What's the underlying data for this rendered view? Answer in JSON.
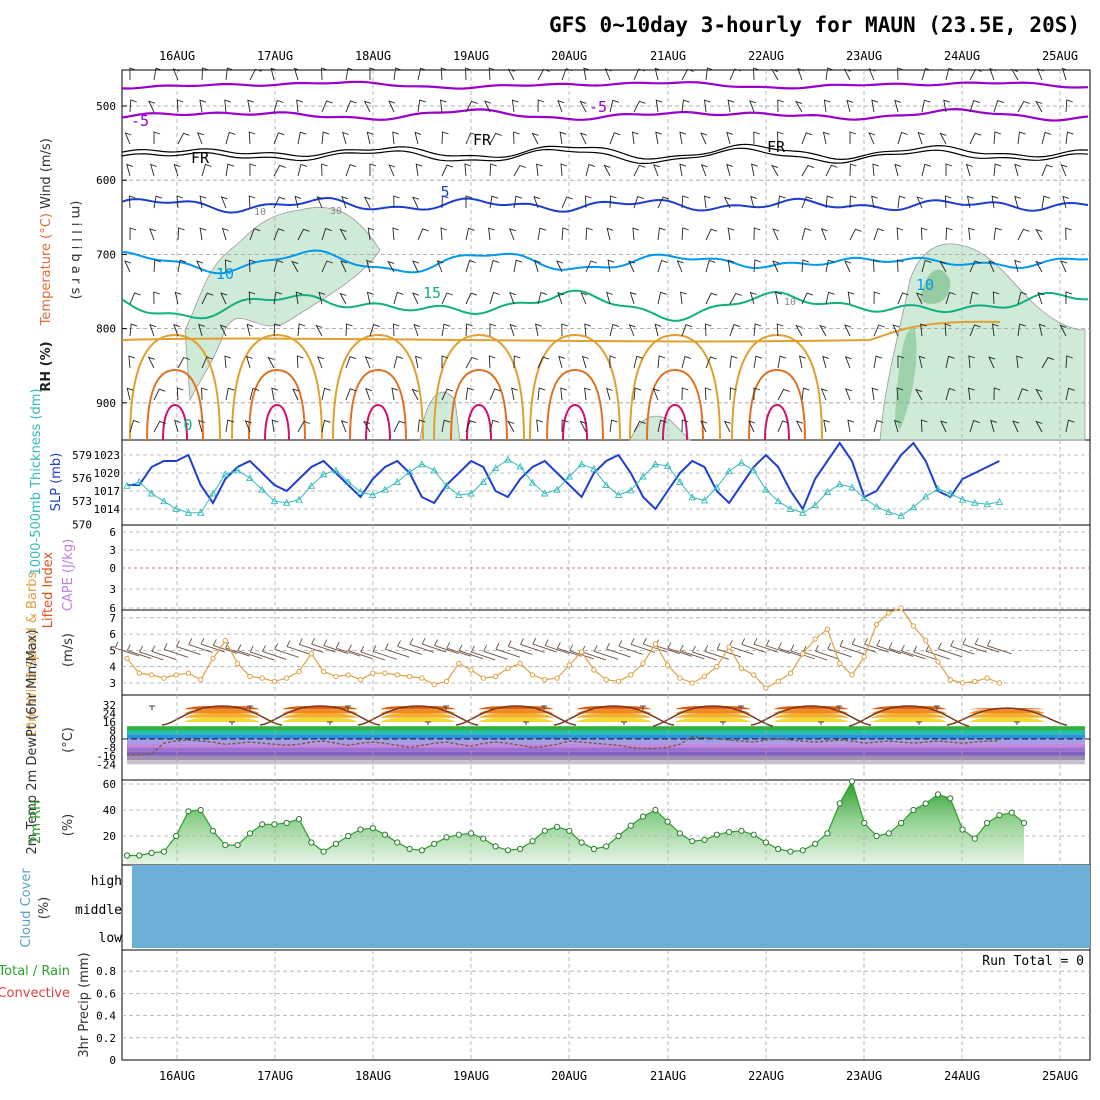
{
  "chart_data": {
    "type": "meteogram",
    "title": "GFS 0~10day 3-hourly for MAUN (23.5E, 20S)",
    "dates": [
      "16AUG",
      "17AUG",
      "18AUG",
      "19AUG",
      "20AUG",
      "21AUG",
      "22AUG",
      "23AUG",
      "24AUG",
      "25AUG"
    ],
    "panels": {
      "upper_air": {
        "ylabel_parts": [
          "RH (%)",
          "Temperature (°C)",
          "Wind (m/s)"
        ],
        "ylabel_units": "(m i l l i b a r s)",
        "pressure_ticks": [
          "500",
          "600",
          "700",
          "800",
          "900"
        ],
        "contour_labels": [
          "-5",
          "-5",
          "FR",
          "FR",
          "FR",
          "5",
          "10",
          "10",
          "15",
          "0",
          "10",
          "30",
          "10"
        ],
        "colors": {
          "minus5": "#9900cc",
          "freezing": "#000000",
          "t5": "#1a3fd0",
          "t10": "#0099ee",
          "t15": "#10b080",
          "warm1": "#e0a030",
          "warm2": "#e07020",
          "hot": "#d01070",
          "rh": "#bfe3c8"
        }
      },
      "slp_thickness": {
        "ylabel_thickness": "1000-500mb Thickness (dm)",
        "ylabel_slp": "SLP (mb)",
        "thickness_ticks": [
          "579",
          "576",
          "573",
          "570"
        ],
        "slp_ticks": [
          "1023",
          "1020",
          "1017",
          "1014"
        ],
        "slp": [
          1018,
          1018,
          1021,
          1022,
          1022,
          1023,
          1018,
          1015,
          1019,
          1021,
          1022,
          1020,
          1018,
          1017,
          1019,
          1021,
          1022,
          1020,
          1018,
          1016,
          1019,
          1021,
          1022,
          1020,
          1016,
          1015,
          1018,
          1020,
          1022,
          1021,
          1017,
          1016,
          1019,
          1021,
          1022,
          1020,
          1018,
          1016,
          1020,
          1022,
          1023,
          1020,
          1016,
          1014,
          1017,
          1020,
          1022,
          1021,
          1017,
          1015,
          1018,
          1021,
          1023,
          1021,
          1017,
          1014,
          1019,
          1022,
          1025,
          1022,
          1016,
          1017,
          1020,
          1023,
          1025,
          1022,
          1017,
          1016,
          1019,
          1020,
          1021,
          1022
        ],
        "thickness": [
          575,
          575.5,
          574,
          573,
          572,
          571.5,
          571.5,
          574,
          576.5,
          577,
          576,
          574.5,
          573,
          572.8,
          573.2,
          575,
          576.5,
          577,
          575.5,
          574.2,
          573.8,
          574.5,
          575.5,
          576.8,
          577.8,
          577,
          575,
          573.8,
          574,
          575.5,
          577.3,
          578.4,
          577.5,
          575.4,
          574,
          574.5,
          576.2,
          577.8,
          577.2,
          575.1,
          573.8,
          574.4,
          576.2,
          577.8,
          577.6,
          575.5,
          573.5,
          573.1,
          574.8,
          576.9,
          578,
          577,
          574.5,
          573,
          572,
          571.5,
          572.5,
          574.2,
          575.2,
          574.8,
          573.4,
          572.3,
          571.6,
          571.1,
          572.2,
          573.6,
          574.6,
          574,
          573.2,
          572.8,
          572.6,
          572.9
        ],
        "colors": {
          "slp": "#1f3fd0",
          "thickness": "#33bbbb"
        }
      },
      "cape_li": {
        "ylabel_li": "Lifted Index",
        "ylabel_cape": "CAPE (J/kg)",
        "li_ticks": [
          "6",
          "3",
          "0",
          "3",
          "6"
        ],
        "colors": {
          "zero": "#e04040",
          "li": "#e05020",
          "cape": "#c080e0"
        }
      },
      "wind10m": {
        "ylabel": "10m Wind Speed & Barbs",
        "units": "(m/s)",
        "ticks": [
          "3",
          "4",
          "5",
          "6",
          "7"
        ],
        "speed": [
          4.5,
          3.6,
          3.5,
          3.3,
          3.5,
          3.6,
          3.2,
          4.5,
          5.6,
          4.2,
          3.4,
          3.3,
          3.1,
          3.3,
          3.7,
          4.8,
          3.7,
          3.4,
          3.5,
          3.2,
          3.6,
          3.6,
          3.5,
          3.4,
          3.3,
          2.9,
          3.1,
          4.2,
          3.8,
          3.3,
          3.4,
          3.9,
          4.2,
          3.5,
          3.2,
          3.3,
          4.1,
          4.9,
          3.8,
          3.2,
          3.1,
          3.5,
          4.2,
          5.4,
          4.1,
          3.3,
          3.0,
          3.4,
          4.0,
          5.2,
          3.9,
          3.5,
          2.7,
          3.1,
          3.6,
          4.8,
          5.7,
          6.3,
          4.2,
          3.5,
          4.6,
          6.6,
          7.3,
          7.6,
          6.5,
          5.6,
          4.3,
          3.2,
          3.0,
          3.1,
          3.3,
          3.0
        ],
        "color": "#e0a040"
      },
      "temp2m": {
        "ylabel": "2m Temp 2m DewPt (6hr Min/Max)",
        "units": "(°C)",
        "ticks": [
          "32",
          "24",
          "16",
          "8",
          "0",
          "-8",
          "-16",
          "-24"
        ],
        "tmax": [
          31,
          31,
          31,
          31,
          31,
          31,
          31,
          31,
          29
        ],
        "tmin": [
          13,
          13,
          13,
          13,
          13,
          12,
          13,
          12,
          13
        ],
        "dewpt": [
          -15,
          -15,
          -14,
          -4,
          -2,
          -1,
          -2,
          -3,
          -5,
          -4,
          -3,
          -4,
          -5,
          -6,
          -5,
          -3,
          -2,
          -4,
          -6,
          -4,
          -3,
          -4,
          -6,
          -8,
          -6,
          -4,
          -3,
          -5,
          -7,
          -4,
          -3,
          -4,
          -6,
          -8,
          -7,
          -5,
          -2,
          -3,
          -4,
          -5,
          -6,
          -8,
          -9,
          -9,
          -8,
          -5,
          2,
          1,
          0,
          -1,
          -2,
          -3,
          -1,
          0,
          -1,
          -2,
          -3,
          -2,
          -1,
          -2,
          -4,
          -3,
          -2,
          -3,
          -4,
          -3,
          -2,
          -3,
          -4,
          -3,
          -2,
          -2
        ]
      },
      "rh2m": {
        "ylabel": "2m RH",
        "units": "(%)",
        "ticks": [
          "20",
          "40",
          "60"
        ],
        "values": [
          5,
          5,
          7,
          8,
          20,
          39,
          40,
          24,
          13,
          13,
          22,
          29,
          29,
          30,
          33,
          15,
          8,
          14,
          20,
          25,
          26,
          21,
          15,
          10,
          9,
          14,
          19,
          21,
          22,
          18,
          12,
          9,
          10,
          16,
          24,
          27,
          24,
          15,
          10,
          12,
          20,
          28,
          35,
          40,
          31,
          22,
          16,
          17,
          21,
          23,
          24,
          21,
          15,
          10,
          8,
          9,
          14,
          22,
          45,
          62,
          30,
          20,
          22,
          30,
          40,
          45,
          52,
          49,
          25,
          18,
          30,
          36,
          38,
          30
        ],
        "color": "#2aa02a"
      },
      "cloud": {
        "ylabel": "Cloud Cover",
        "units": "(%)",
        "levels": [
          "high",
          "middle",
          "low"
        ],
        "fill": "#6baed6"
      },
      "precip": {
        "ylabel_total": "Total / Rain",
        "ylabel_conv": "Convective",
        "ylabel_units": "3hr Precip (mm)",
        "ticks": [
          "0",
          "0.2",
          "0.4",
          "0.6",
          "0.8"
        ],
        "run_total": "Run Total = 0"
      }
    }
  }
}
